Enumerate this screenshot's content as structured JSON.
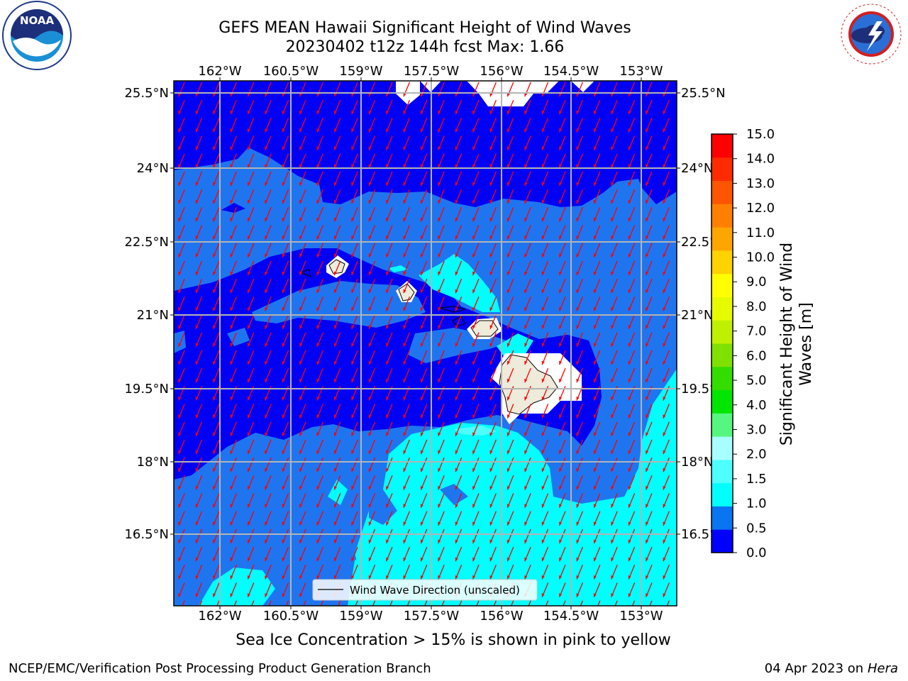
{
  "title": {
    "line1": "GEFS MEAN Hawaii Significant Height of Wind Waves",
    "line2": "20230402 t12z 144h fcst   Max: 1.66"
  },
  "logos": {
    "left": {
      "name": "noaa-logo",
      "text": "NOAA",
      "ring_text": "NATIONAL OCEANIC AND ATMOSPHERIC ADMINISTRATION · U.S. DEPARTMENT OF COMMERCE"
    },
    "right": {
      "name": "nws-logo",
      "ring_text": "NATIONAL WEATHER SERVICE"
    }
  },
  "map": {
    "lon_ticks": [
      "162°W",
      "160.5°W",
      "159°W",
      "157.5°W",
      "156°W",
      "154.5°W",
      "153°W"
    ],
    "lat_ticks": [
      "25.5°N",
      "24°N",
      "22.5°N",
      "21°N",
      "19.5°N",
      "18°N",
      "16.5°N"
    ],
    "legend_label": "Wind Wave Direction (unscaled)",
    "colors": {
      "band_0_05": "#0000f5",
      "band_05_10": "#1f75f0",
      "band_10_15": "#00ffff",
      "band_15_20": "#4dfefe",
      "land": "#efebda",
      "arrow": "#ff0000",
      "grid": "#b4b4b4"
    }
  },
  "colorbar": {
    "label_line1": "Significant Height of Wind",
    "label_line2": "Waves [m]",
    "ticks": [
      "0.0",
      "0.5",
      "1.0",
      "1.5",
      "2.0",
      "3.0",
      "4.0",
      "5.0",
      "6.0",
      "7.0",
      "8.0",
      "9.0",
      "10.0",
      "11.0",
      "12.0",
      "13.0",
      "14.0",
      "15.0"
    ],
    "colors": [
      "#0000ff",
      "#0a75f0",
      "#00ffff",
      "#4dffff",
      "#a8ffff",
      "#55f77f",
      "#00e600",
      "#33dd00",
      "#80e000",
      "#bff000",
      "#e6fb00",
      "#ffff00",
      "#ffd200",
      "#ffa500",
      "#ff8000",
      "#ff5500",
      "#ff2b00",
      "#ff0000"
    ]
  },
  "sea_ice_note": "Sea Ice Concentration > 15% is shown in pink to yellow",
  "footer": {
    "left": "NCEP/EMC/Verification Post Processing Product Generation Branch",
    "right_date": "04 Apr 2023 on ",
    "right_host": "Hera"
  }
}
